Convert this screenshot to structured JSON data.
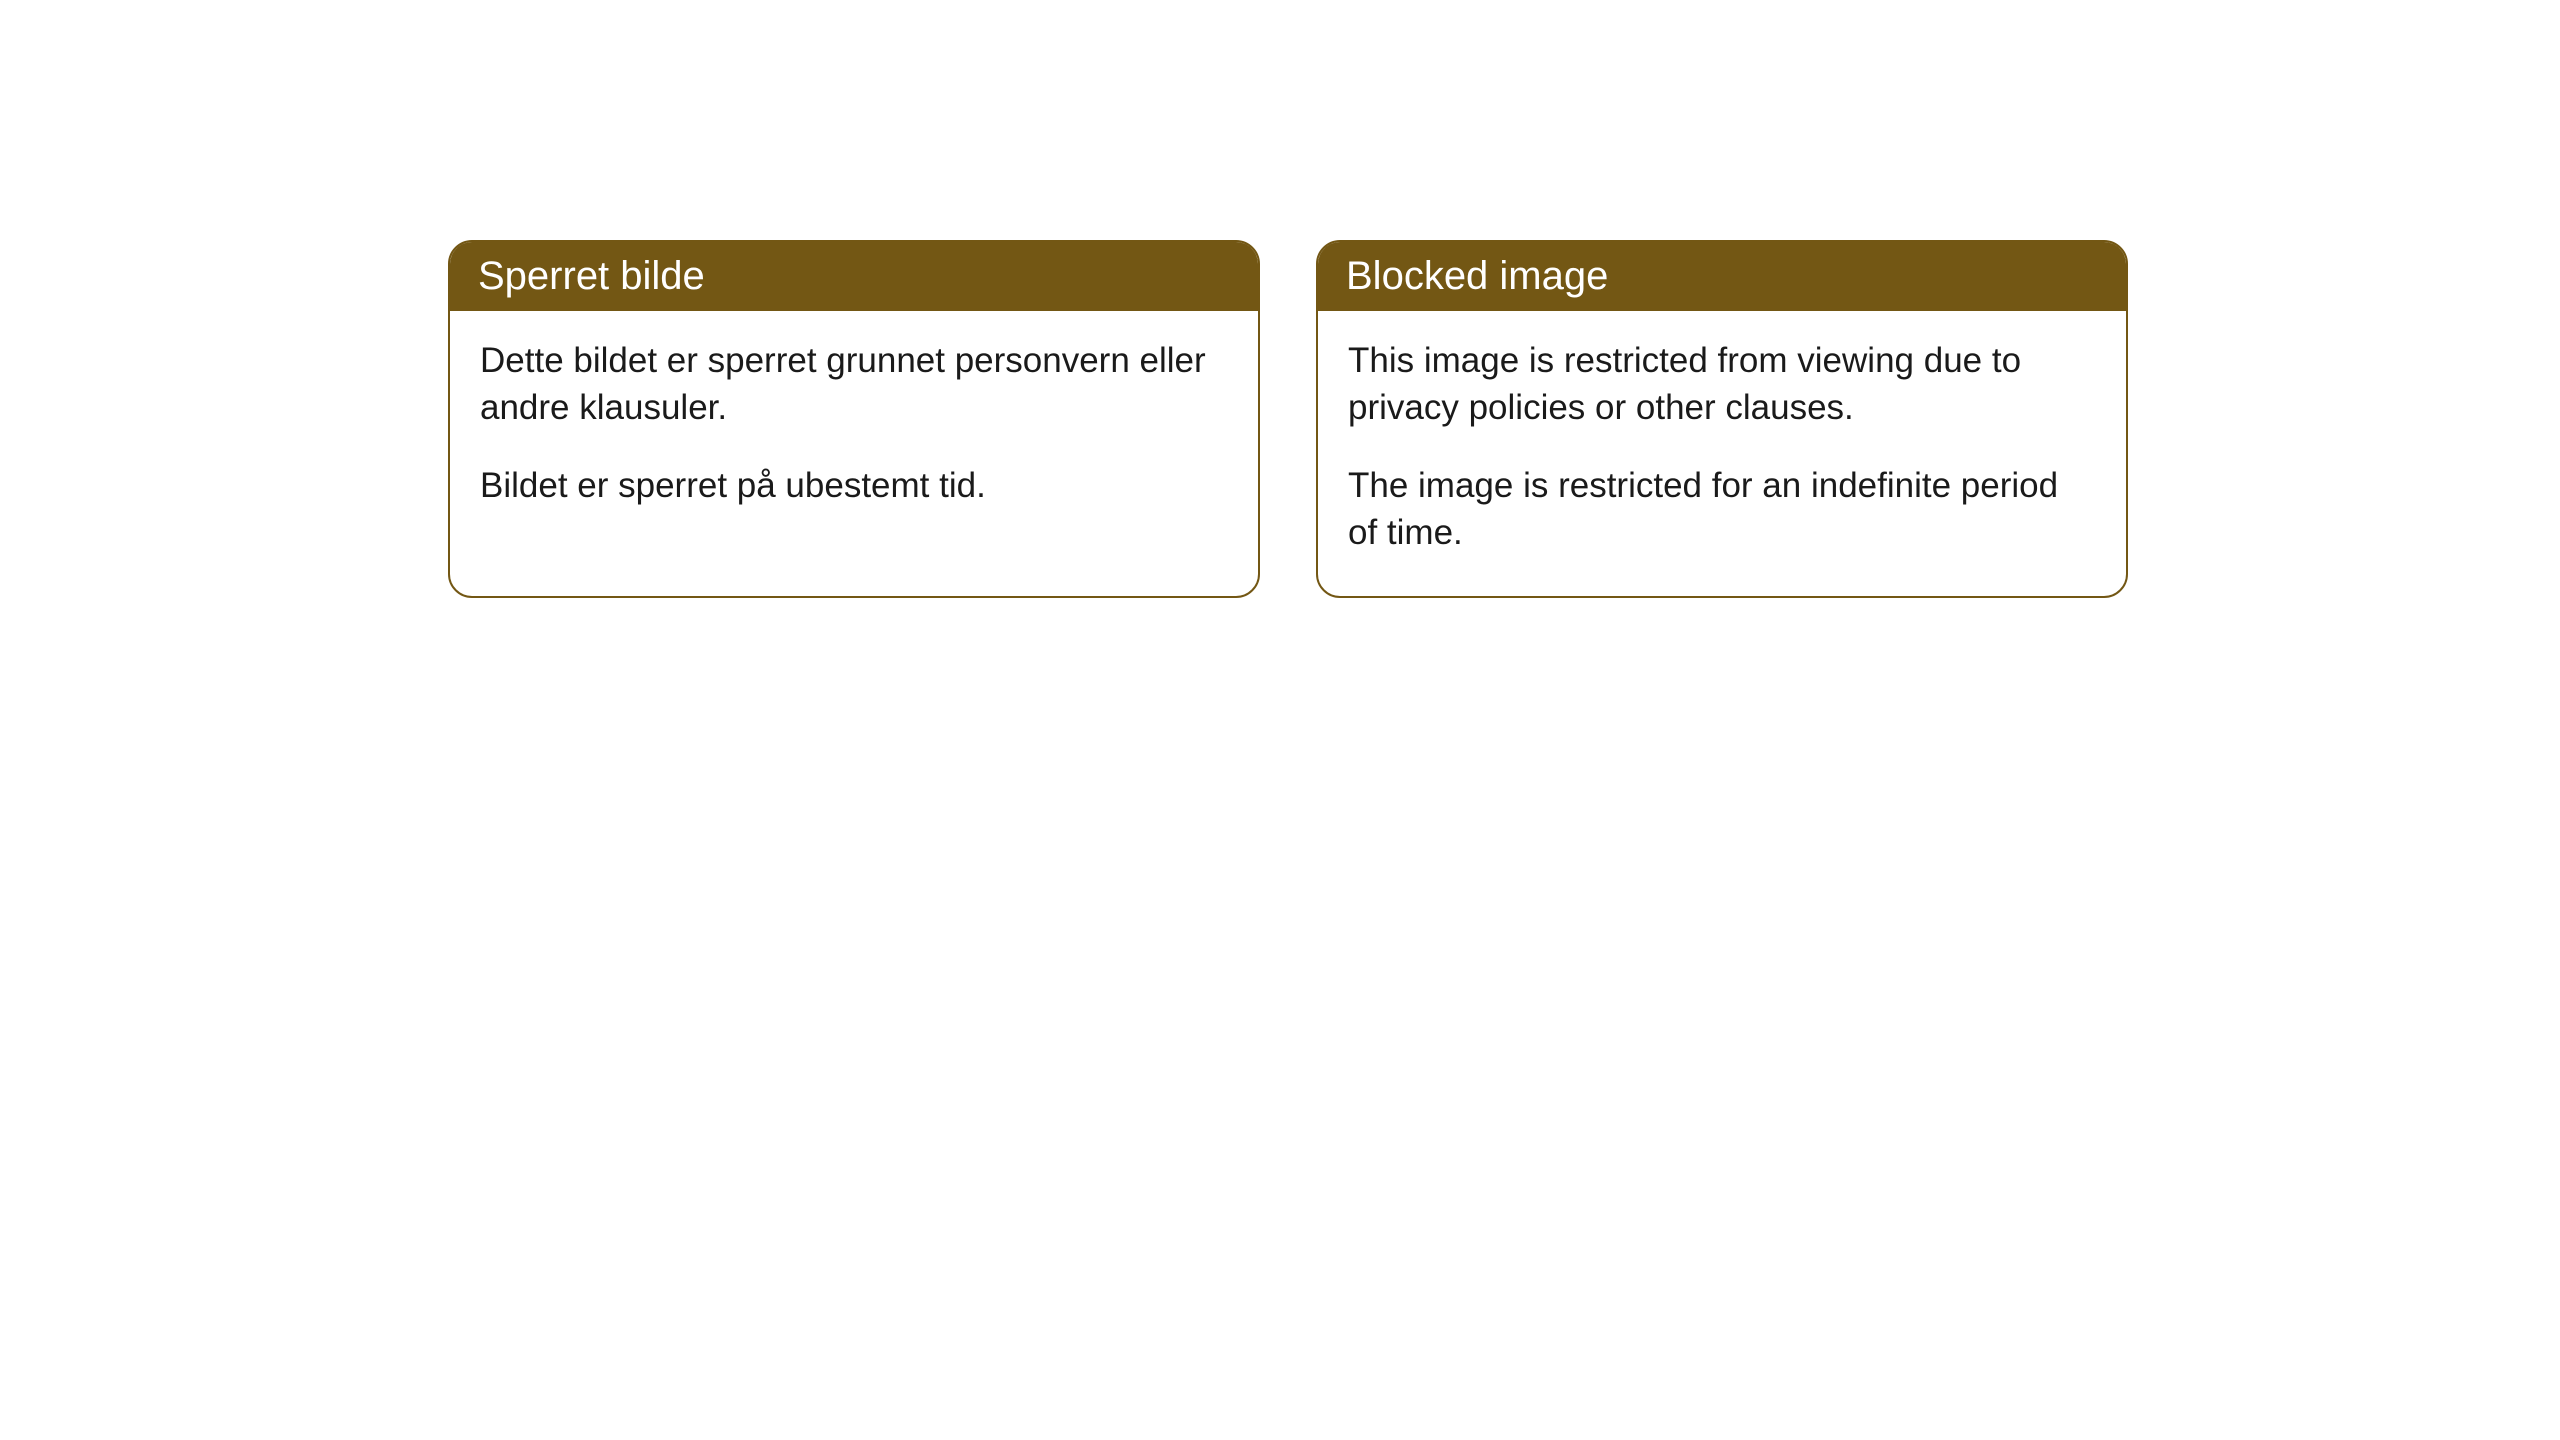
{
  "cards": [
    {
      "title": "Sperret bilde",
      "paragraph1": "Dette bildet er sperret grunnet personvern eller andre klausuler.",
      "paragraph2": "Bildet er sperret på ubestemt tid."
    },
    {
      "title": "Blocked image",
      "paragraph1": "This image is restricted from viewing due to privacy policies or other clauses.",
      "paragraph2": "The image is restricted for an indefinite period of time."
    }
  ],
  "styling": {
    "header_bg_color": "#735714",
    "header_text_color": "#ffffff",
    "border_color": "#735714",
    "border_radius": "24px",
    "body_text_color": "#1a1a1a",
    "card_bg_color": "#ffffff",
    "page_bg_color": "#ffffff",
    "header_fontsize": 40,
    "body_fontsize": 35
  }
}
